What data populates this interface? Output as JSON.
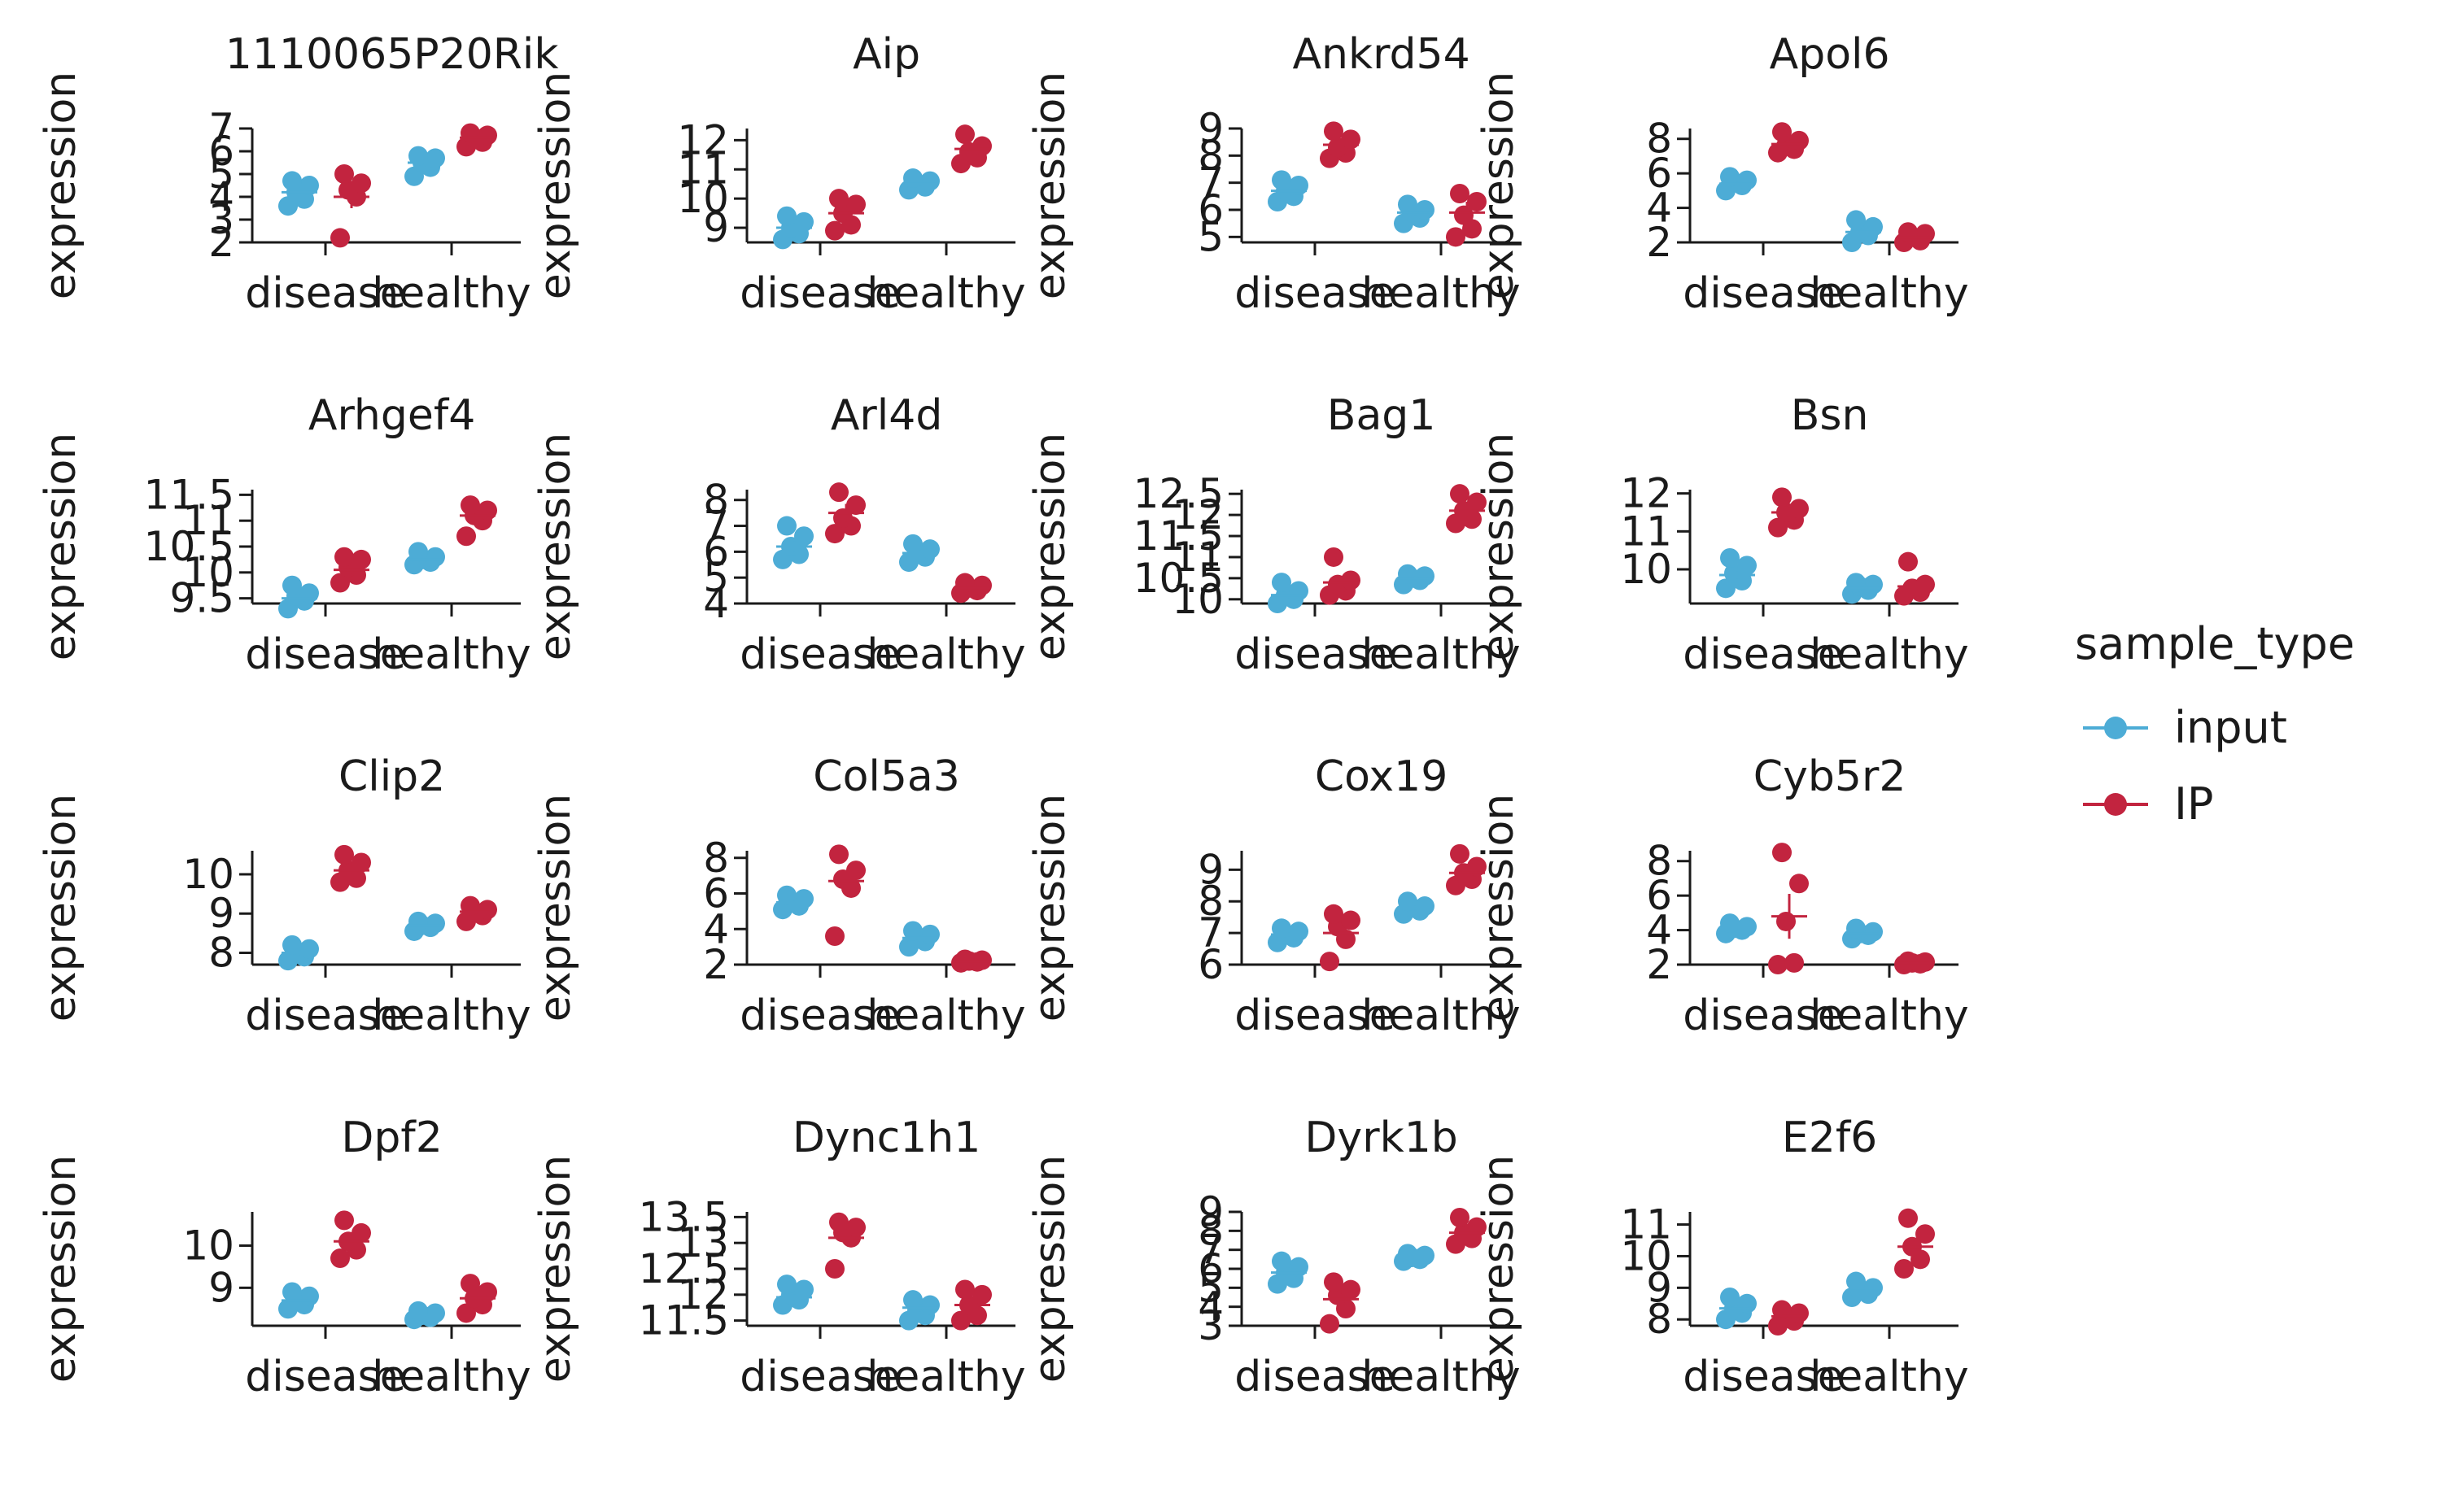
{
  "chart_data": {
    "type": "scatter",
    "layout": "facet-grid",
    "x_categories": [
      "disease",
      "healthy"
    ],
    "ylabel": "expression",
    "legend": {
      "title": "sample_type",
      "position": "right",
      "items": [
        {
          "name": "input",
          "color": "#4DACD6"
        },
        {
          "name": "IP",
          "color": "#C2243F"
        }
      ]
    },
    "panels": [
      {
        "title": "1110065P20Rik",
        "ylim": [
          2,
          7
        ],
        "yticks": [
          2,
          3,
          4,
          5,
          6,
          7
        ],
        "points": {
          "disease": {
            "input": [
              3.6,
              3.9,
              4.2,
              4.5,
              4.7
            ],
            "IP": [
              2.2,
              4.0,
              4.3,
              4.6,
              5.0
            ]
          },
          "healthy": {
            "input": [
              4.9,
              5.3,
              5.5,
              5.7,
              5.8
            ],
            "IP": [
              6.2,
              6.4,
              6.6,
              6.7,
              6.8
            ]
          }
        },
        "means": {
          "disease": {
            "input": 4.2,
            "IP": 4.0
          },
          "healthy": {
            "input": 5.5,
            "IP": 6.6
          }
        },
        "errors": {
          "disease": {
            "input": 0.2,
            "IP": 0.5
          },
          "healthy": {
            "input": 0.15,
            "IP": 0.1
          }
        }
      },
      {
        "title": "Aip",
        "ylim": [
          8.5,
          12.4
        ],
        "yticks": [
          9,
          10,
          11,
          12
        ],
        "points": {
          "disease": {
            "input": [
              8.6,
              8.8,
              9.0,
              9.2,
              9.4
            ],
            "IP": [
              8.9,
              9.1,
              9.5,
              9.8,
              10.0
            ]
          },
          "healthy": {
            "input": [
              10.3,
              10.4,
              10.5,
              10.6,
              10.7
            ],
            "IP": [
              11.2,
              11.4,
              11.6,
              11.8,
              12.2
            ]
          }
        },
        "means": {
          "disease": {
            "input": 9.0,
            "IP": 9.5
          },
          "healthy": {
            "input": 10.5,
            "IP": 11.7
          }
        },
        "errors": {
          "disease": {
            "input": 0.15,
            "IP": 0.2
          },
          "healthy": {
            "input": 0.07,
            "IP": 0.2
          }
        }
      },
      {
        "title": "Ankrd54",
        "ylim": [
          4.8,
          9
        ],
        "yticks": [
          5,
          6,
          7,
          8,
          9
        ],
        "points": {
          "disease": {
            "input": [
              6.3,
              6.5,
              6.7,
              6.9,
              7.1
            ],
            "IP": [
              7.9,
              8.1,
              8.3,
              8.6,
              8.9
            ]
          },
          "healthy": {
            "input": [
              5.5,
              5.7,
              5.9,
              6.0,
              6.2
            ],
            "IP": [
              5.0,
              5.3,
              5.8,
              6.3,
              6.6
            ]
          }
        },
        "means": {
          "disease": {
            "input": 6.7,
            "IP": 8.4
          },
          "healthy": {
            "input": 5.9,
            "IP": 5.9
          }
        },
        "errors": {
          "disease": {
            "input": 0.12,
            "IP": 0.25
          },
          "healthy": {
            "input": 0.1,
            "IP": 0.4
          }
        }
      },
      {
        "title": "Apol6",
        "ylim": [
          2,
          8.6
        ],
        "yticks": [
          2,
          4,
          6,
          8
        ],
        "points": {
          "disease": {
            "input": [
              5.0,
              5.3,
              5.5,
              5.6,
              5.8
            ],
            "IP": [
              7.2,
              7.4,
              7.6,
              7.9,
              8.4
            ]
          },
          "healthy": {
            "input": [
              2.0,
              2.4,
              2.6,
              2.9,
              3.3
            ],
            "IP": [
              2.0,
              2.1,
              2.3,
              2.5,
              2.6
            ]
          }
        },
        "means": {
          "disease": {
            "input": 5.4,
            "IP": 7.7
          },
          "healthy": {
            "input": 2.6,
            "IP": 2.3
          }
        },
        "errors": {
          "disease": {
            "input": 0.12,
            "IP": 0.2
          },
          "healthy": {
            "input": 0.2,
            "IP": 0.1
          }
        }
      },
      {
        "title": "Arhgef4",
        "ylim": [
          9.4,
          11.6
        ],
        "yticks": [
          9.5,
          10.0,
          10.5,
          11.0,
          11.5
        ],
        "points": {
          "disease": {
            "input": [
              9.3,
              9.45,
              9.55,
              9.6,
              9.75
            ],
            "IP": [
              9.8,
              9.95,
              10.1,
              10.25,
              10.3
            ]
          },
          "healthy": {
            "input": [
              10.15,
              10.2,
              10.25,
              10.3,
              10.4
            ],
            "IP": [
              10.7,
              11.0,
              11.1,
              11.2,
              11.3
            ]
          }
        },
        "means": {
          "disease": {
            "input": 9.5,
            "IP": 10.05
          },
          "healthy": {
            "input": 10.25,
            "IP": 11.1
          }
        },
        "errors": {
          "disease": {
            "input": 0.06,
            "IP": 0.08
          },
          "healthy": {
            "input": 0.04,
            "IP": 0.1
          }
        }
      },
      {
        "title": "Arl4d",
        "ylim": [
          4,
          8.4
        ],
        "yticks": [
          4,
          5,
          6,
          7,
          8
        ],
        "points": {
          "disease": {
            "input": [
              5.7,
              5.9,
              6.2,
              6.6,
              7.0
            ],
            "IP": [
              6.7,
              7.0,
              7.3,
              7.8,
              8.3
            ]
          },
          "healthy": {
            "input": [
              5.6,
              5.8,
              6.0,
              6.1,
              6.3
            ],
            "IP": [
              4.4,
              4.5,
              4.6,
              4.7,
              4.8
            ]
          }
        },
        "means": {
          "disease": {
            "input": 6.2,
            "IP": 7.5
          },
          "healthy": {
            "input": 5.95,
            "IP": 4.6
          }
        },
        "errors": {
          "disease": {
            "input": 0.2,
            "IP": 0.35
          },
          "healthy": {
            "input": 0.1,
            "IP": 0.05
          }
        }
      },
      {
        "title": "Bag1",
        "ylim": [
          9.9,
          12.6
        ],
        "yticks": [
          10.0,
          10.5,
          11.0,
          11.5,
          12.0,
          12.5
        ],
        "points": {
          "disease": {
            "input": [
              9.9,
              10.0,
              10.1,
              10.2,
              10.4
            ],
            "IP": [
              10.1,
              10.2,
              10.35,
              10.45,
              11.0
            ]
          },
          "healthy": {
            "input": [
              10.35,
              10.45,
              10.5,
              10.55,
              10.6
            ],
            "IP": [
              11.8,
              11.9,
              12.1,
              12.3,
              12.5
            ]
          }
        },
        "means": {
          "disease": {
            "input": 10.1,
            "IP": 10.4
          },
          "healthy": {
            "input": 10.5,
            "IP": 12.1
          }
        },
        "errors": {
          "disease": {
            "input": 0.08,
            "IP": 0.15
          },
          "healthy": {
            "input": 0.04,
            "IP": 0.12
          }
        }
      },
      {
        "title": "Bsn",
        "ylim": [
          9.1,
          12.1
        ],
        "yticks": [
          10,
          11,
          12
        ],
        "points": {
          "disease": {
            "input": [
              9.5,
              9.7,
              9.9,
              10.1,
              10.3
            ],
            "IP": [
              11.1,
              11.3,
              11.5,
              11.6,
              11.9
            ]
          },
          "healthy": {
            "input": [
              9.35,
              9.45,
              9.55,
              9.6,
              9.65
            ],
            "IP": [
              9.3,
              9.4,
              9.5,
              9.6,
              10.2
            ]
          }
        },
        "means": {
          "disease": {
            "input": 9.85,
            "IP": 11.5
          },
          "healthy": {
            "input": 9.5,
            "IP": 9.55
          }
        },
        "errors": {
          "disease": {
            "input": 0.1,
            "IP": 0.12
          },
          "healthy": {
            "input": 0.05,
            "IP": 0.15
          }
        }
      },
      {
        "title": "Clip2",
        "ylim": [
          7.7,
          10.6
        ],
        "yticks": [
          8,
          9,
          10
        ],
        "points": {
          "disease": {
            "input": [
              7.8,
              7.9,
              8.0,
              8.1,
              8.2
            ],
            "IP": [
              9.8,
              9.9,
              10.1,
              10.3,
              10.5
            ]
          },
          "healthy": {
            "input": [
              8.55,
              8.65,
              8.7,
              8.75,
              8.8
            ],
            "IP": [
              8.8,
              8.95,
              9.05,
              9.1,
              9.2
            ]
          }
        },
        "means": {
          "disease": {
            "input": 8.0,
            "IP": 10.1
          },
          "healthy": {
            "input": 8.7,
            "IP": 9.05
          }
        },
        "errors": {
          "disease": {
            "input": 0.06,
            "IP": 0.1
          },
          "healthy": {
            "input": 0.04,
            "IP": 0.06
          }
        }
      },
      {
        "title": "Col5a3",
        "ylim": [
          2,
          8.4
        ],
        "yticks": [
          2,
          4,
          6,
          8
        ],
        "points": {
          "disease": {
            "input": [
              5.1,
              5.3,
              5.5,
              5.7,
              5.9
            ],
            "IP": [
              3.6,
              6.3,
              6.8,
              7.3,
              8.2
            ]
          },
          "healthy": {
            "input": [
              3.0,
              3.3,
              3.5,
              3.7,
              3.9
            ],
            "IP": [
              2.1,
              2.15,
              2.2,
              2.25,
              2.3
            ]
          }
        },
        "means": {
          "disease": {
            "input": 5.5,
            "IP": 6.7
          },
          "healthy": {
            "input": 3.5,
            "IP": 2.2
          }
        },
        "errors": {
          "disease": {
            "input": 0.1,
            "IP": 0.6
          },
          "healthy": {
            "input": 0.12,
            "IP": 0.03
          }
        }
      },
      {
        "title": "Cox19",
        "ylim": [
          6,
          9.6
        ],
        "yticks": [
          6,
          7,
          8,
          9
        ],
        "points": {
          "disease": {
            "input": [
              6.7,
              6.85,
              6.95,
              7.05,
              7.15
            ],
            "IP": [
              6.1,
              6.8,
              7.2,
              7.4,
              7.6
            ]
          },
          "healthy": {
            "input": [
              7.6,
              7.7,
              7.8,
              7.85,
              8.0
            ],
            "IP": [
              8.5,
              8.7,
              8.9,
              9.1,
              9.5
            ]
          }
        },
        "means": {
          "disease": {
            "input": 6.95,
            "IP": 7.0
          },
          "healthy": {
            "input": 7.8,
            "IP": 8.9
          }
        },
        "errors": {
          "disease": {
            "input": 0.06,
            "IP": 0.25
          },
          "healthy": {
            "input": 0.06,
            "IP": 0.15
          }
        }
      },
      {
        "title": "Cyb5r2",
        "ylim": [
          2,
          8.6
        ],
        "yticks": [
          2,
          4,
          6,
          8
        ],
        "points": {
          "disease": {
            "input": [
              3.8,
              4.0,
              4.1,
              4.2,
              4.4
            ],
            "IP": [
              2.0,
              2.1,
              4.5,
              6.7,
              8.5
            ]
          },
          "healthy": {
            "input": [
              3.5,
              3.7,
              3.8,
              3.9,
              4.1
            ],
            "IP": [
              2.0,
              2.05,
              2.1,
              2.15,
              2.2
            ]
          }
        },
        "means": {
          "disease": {
            "input": 4.1,
            "IP": 4.8
          },
          "healthy": {
            "input": 3.8,
            "IP": 2.1
          }
        },
        "errors": {
          "disease": {
            "input": 0.08,
            "IP": 1.3
          },
          "healthy": {
            "input": 0.1,
            "IP": 0.03
          }
        }
      },
      {
        "title": "Dpf2",
        "ylim": [
          8.1,
          10.8
        ],
        "yticks": [
          9,
          10
        ],
        "points": {
          "disease": {
            "input": [
              8.5,
              8.6,
              8.7,
              8.8,
              8.9
            ],
            "IP": [
              9.7,
              9.9,
              10.1,
              10.3,
              10.6
            ]
          },
          "healthy": {
            "input": [
              8.25,
              8.3,
              8.35,
              8.4,
              8.45
            ],
            "IP": [
              8.4,
              8.6,
              8.75,
              8.9,
              9.1
            ]
          }
        },
        "means": {
          "disease": {
            "input": 8.7,
            "IP": 10.1
          },
          "healthy": {
            "input": 8.35,
            "IP": 8.75
          }
        },
        "errors": {
          "disease": {
            "input": 0.06,
            "IP": 0.15
          },
          "healthy": {
            "input": 0.03,
            "IP": 0.1
          }
        }
      },
      {
        "title": "Dync1h1",
        "ylim": [
          11.4,
          13.6
        ],
        "yticks": [
          11.5,
          12.0,
          12.5,
          13.0,
          13.5
        ],
        "points": {
          "disease": {
            "input": [
              11.8,
              11.9,
              12.0,
              12.1,
              12.2
            ],
            "IP": [
              12.5,
              13.1,
              13.2,
              13.3,
              13.4
            ]
          },
          "healthy": {
            "input": [
              11.5,
              11.6,
              11.7,
              11.8,
              11.9
            ],
            "IP": [
              11.5,
              11.6,
              11.8,
              12.0,
              12.1
            ]
          }
        },
        "means": {
          "disease": {
            "input": 11.95,
            "IP": 13.1
          },
          "healthy": {
            "input": 11.75,
            "IP": 11.8
          }
        },
        "errors": {
          "disease": {
            "input": 0.05,
            "IP": 0.12
          },
          "healthy": {
            "input": 0.07,
            "IP": 0.1
          }
        }
      },
      {
        "title": "Dyrk1b",
        "ylim": [
          3,
          9
        ],
        "yticks": [
          3,
          4,
          5,
          6,
          7,
          8,
          9
        ],
        "points": {
          "disease": {
            "input": [
              5.2,
              5.5,
              5.8,
              6.1,
              6.4
            ],
            "IP": [
              3.1,
              3.9,
              4.6,
              4.9,
              5.3
            ]
          },
          "healthy": {
            "input": [
              6.4,
              6.5,
              6.6,
              6.7,
              6.8
            ],
            "IP": [
              7.3,
              7.6,
              7.9,
              8.2,
              8.7
            ]
          }
        },
        "means": {
          "disease": {
            "input": 5.8,
            "IP": 4.4
          },
          "healthy": {
            "input": 6.6,
            "IP": 7.9
          }
        },
        "errors": {
          "disease": {
            "input": 0.12,
            "IP": 0.3
          },
          "healthy": {
            "input": 0.05,
            "IP": 0.2
          }
        }
      },
      {
        "title": "E2f6",
        "ylim": [
          7.8,
          11.4
        ],
        "yticks": [
          8,
          9,
          10,
          11
        ],
        "points": {
          "disease": {
            "input": [
              8.0,
              8.2,
              8.35,
              8.5,
              8.7
            ],
            "IP": [
              7.8,
              7.95,
              8.1,
              8.2,
              8.3
            ]
          },
          "healthy": {
            "input": [
              8.7,
              8.8,
              8.9,
              9.0,
              9.2
            ],
            "IP": [
              9.6,
              9.9,
              10.3,
              10.7,
              11.2
            ]
          }
        },
        "means": {
          "disease": {
            "input": 8.35,
            "IP": 8.1
          },
          "healthy": {
            "input": 8.9,
            "IP": 10.3
          }
        },
        "errors": {
          "disease": {
            "input": 0.06,
            "IP": 0.06
          },
          "healthy": {
            "input": 0.07,
            "IP": 0.25
          }
        }
      }
    ]
  }
}
